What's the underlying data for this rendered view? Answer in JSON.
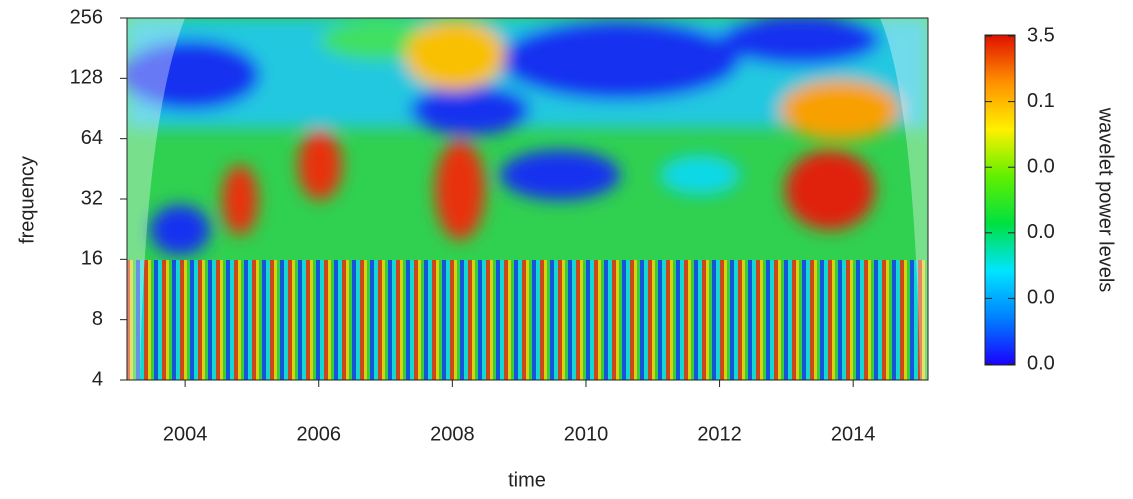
{
  "chart_data": {
    "type": "heatmap",
    "x_label": "time",
    "y_label": "frequency",
    "xlim": [
      2003.13,
      2015.12
    ],
    "xticks": [
      2004,
      2006,
      2008,
      2010,
      2012,
      2014
    ],
    "ylim": [
      4,
      256
    ],
    "yticks": [
      4,
      8,
      16,
      32,
      64,
      128,
      256
    ],
    "y_log_base": 2,
    "colorbar_title": "wavelet power levels",
    "colorbar_labels": [
      "3.5",
      "0.1",
      "0.0",
      "0.0",
      "0.0",
      "0.0"
    ],
    "colorbar_colors": [
      "#1a00ff",
      "#0080ff",
      "#00e5ff",
      "#00e040",
      "#60f000",
      "#fff000",
      "#ff9000",
      "#e01000"
    ]
  }
}
